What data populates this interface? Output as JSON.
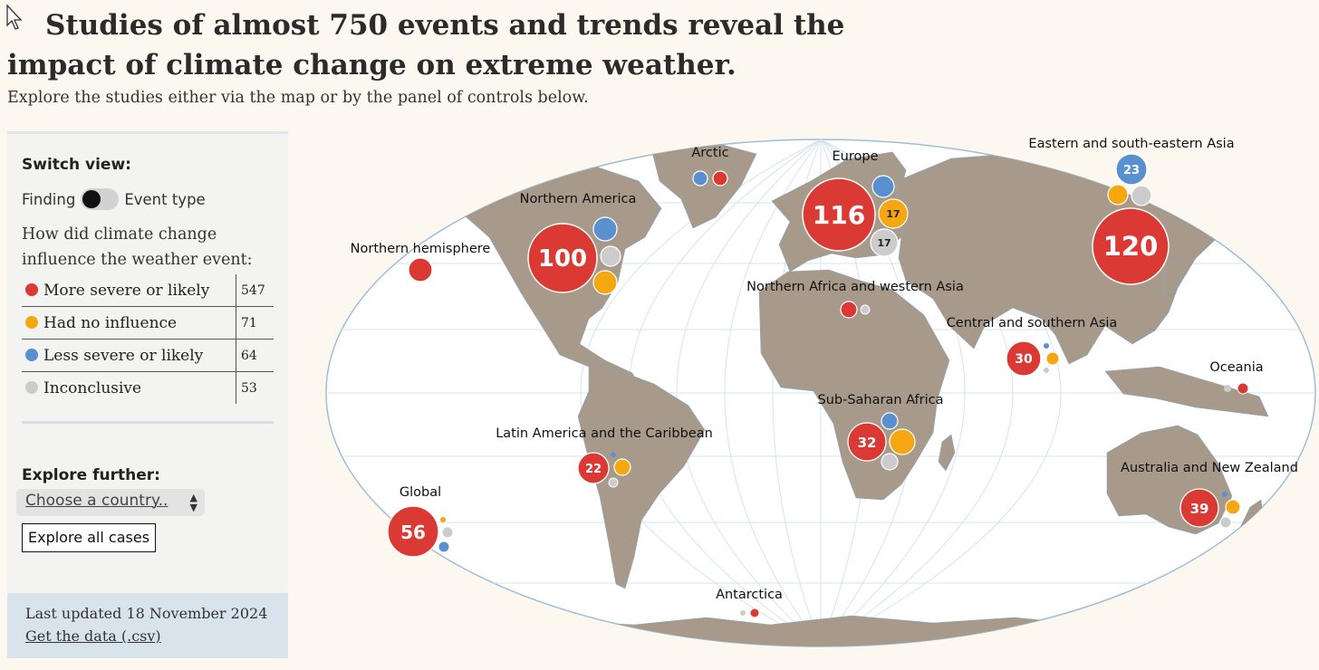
{
  "header": {
    "title": "Studies of almost 750 events and trends reveal the impact of climate change on extreme weather.",
    "subtitle": "Explore the studies either via the map or by the panel of controls below."
  },
  "panel": {
    "switch_title": "Switch view:",
    "toggle_left": "Finding",
    "toggle_right": "Event type",
    "question": "How did climate change influence the weather event:",
    "legend": [
      {
        "label": "More severe or likely",
        "count": "547",
        "color": "#db3a34"
      },
      {
        "label": "Had no influence",
        "count": "71",
        "color": "#f4a711"
      },
      {
        "label": "Less severe or likely",
        "count": "64",
        "color": "#5b90d0"
      },
      {
        "label": "Inconclusive",
        "count": "53",
        "color": "#cccccc"
      }
    ],
    "explore_title": "Explore further:",
    "country_select": "Choose a country..",
    "explore_button": "Explore all cases",
    "updated": "Last updated 18 November 2024",
    "csv_link": "Get the data (.csv)"
  },
  "map": {
    "regions": [
      {
        "id": "arctic",
        "name": "Arctic",
        "total": null
      },
      {
        "id": "europe",
        "name": "Europe",
        "total": 116,
        "no_influence": 17,
        "inconclusive": 17
      },
      {
        "id": "eastern-se-asia",
        "name": "Eastern and south-eastern Asia",
        "total": 120,
        "less": 23
      },
      {
        "id": "northern-america",
        "name": "Northern America",
        "total": 100
      },
      {
        "id": "northern-hemisphere",
        "name": "Northern hemisphere",
        "total": null
      },
      {
        "id": "n-africa-w-asia",
        "name": "Northern Africa and western Asia",
        "total": null
      },
      {
        "id": "central-southern-asia",
        "name": "Central and southern Asia",
        "total": 30
      },
      {
        "id": "oceania",
        "name": "Oceania",
        "total": null
      },
      {
        "id": "sub-saharan-africa",
        "name": "Sub-Saharan Africa",
        "total": 32
      },
      {
        "id": "latin-america",
        "name": "Latin America and the Caribbean",
        "total": 22
      },
      {
        "id": "australia-nz",
        "name": "Australia and New Zealand",
        "total": 39
      },
      {
        "id": "global",
        "name": "Global",
        "total": 56
      },
      {
        "id": "antarctica",
        "name": "Antarctica",
        "total": null
      }
    ]
  }
}
